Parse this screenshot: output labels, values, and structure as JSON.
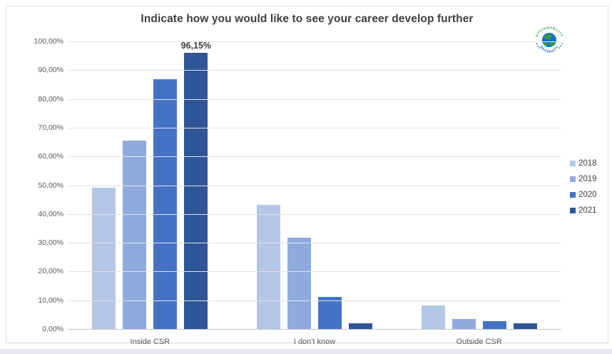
{
  "page": {
    "background": "#ffffff",
    "frame_border_color": "#d9d6de",
    "bottom_strip_color": "#e9e7ef",
    "gridline_color": "#e2e2ea",
    "axis_line_color": "#c8c5d0"
  },
  "logo": {
    "top_text": "SUSTAINABILITY",
    "bottom_text": "UNIVERSITY",
    "ring_top_color": "#2f9e49",
    "ring_bottom_color": "#1d5fa8",
    "globe_ocean_color": "#1a72c0",
    "globe_land_color": "#2e9e43"
  },
  "chart_data": {
    "type": "bar",
    "title": "Indicate how you would like to see your career develop further",
    "title_color": "#3f3f3f",
    "categories": [
      "Inside CSR",
      "I don't know",
      "Outside CSR"
    ],
    "series": [
      {
        "name": "2018",
        "color": "#b4c7e7",
        "values": [
          49.1,
          43.2,
          8.2
        ]
      },
      {
        "name": "2019",
        "color": "#8faadc",
        "values": [
          65.4,
          31.8,
          3.6
        ]
      },
      {
        "name": "2020",
        "color": "#4472c4",
        "values": [
          86.8,
          11.1,
          2.8
        ]
      },
      {
        "name": "2021",
        "color": "#2f5597",
        "values": [
          96.15,
          2.1,
          2.0
        ]
      }
    ],
    "data_labels": [
      {
        "series_index": 3,
        "category_index": 0,
        "text": "96,15%"
      }
    ],
    "y_axis": {
      "min": 0,
      "max": 100,
      "step": 10,
      "ticks": [
        {
          "value": 0,
          "label": "0,00%"
        },
        {
          "value": 10,
          "label": "10,00%"
        },
        {
          "value": 20,
          "label": "20,00%"
        },
        {
          "value": 30,
          "label": "30,00%"
        },
        {
          "value": 40,
          "label": "40,00%"
        },
        {
          "value": 50,
          "label": "50,00%"
        },
        {
          "value": 60,
          "label": "60,00%"
        },
        {
          "value": 70,
          "label": "70,00%"
        },
        {
          "value": 80,
          "label": "80,00%"
        },
        {
          "value": 90,
          "label": "90,00%"
        },
        {
          "value": 100,
          "label": "100,00%"
        }
      ]
    },
    "legend_position": "right",
    "gridlines": true
  }
}
